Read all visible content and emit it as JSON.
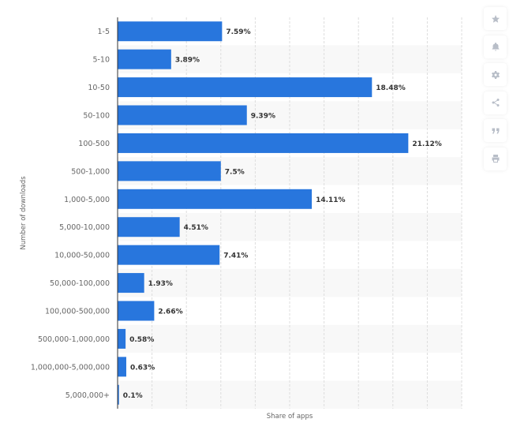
{
  "chart_data": {
    "type": "bar",
    "orientation": "horizontal",
    "categories": [
      "1-5",
      "5-10",
      "10-50",
      "50-100",
      "100-500",
      "500-1,000",
      "1,000-5,000",
      "5,000-10,000",
      "10,000-50,000",
      "50,000-100,000",
      "100,000-500,000",
      "500,000-1,000,000",
      "1,000,000-5,000,000",
      "5,000,000+"
    ],
    "values": [
      7.59,
      3.89,
      18.48,
      9.39,
      21.12,
      7.5,
      14.11,
      4.51,
      7.41,
      1.93,
      2.66,
      0.58,
      0.63,
      0.1
    ],
    "data_labels": [
      "7.59%",
      "3.89%",
      "18.48%",
      "9.39%",
      "21.12%",
      "7.5%",
      "14.11%",
      "4.51%",
      "7.41%",
      "1.93%",
      "2.66%",
      "0.58%",
      "0.63%",
      "0.1%"
    ],
    "xlabel": "Share of apps",
    "ylabel": "Number of downloads",
    "xlim": [
      0,
      25
    ],
    "grid": "vertical dashed every 2.5",
    "bar_color": "#2876dd",
    "band_color": "#f8f8f8"
  },
  "toolbar": {
    "icons": [
      "star-icon",
      "bell-icon",
      "gear-icon",
      "share-icon",
      "quote-icon",
      "print-icon"
    ]
  }
}
